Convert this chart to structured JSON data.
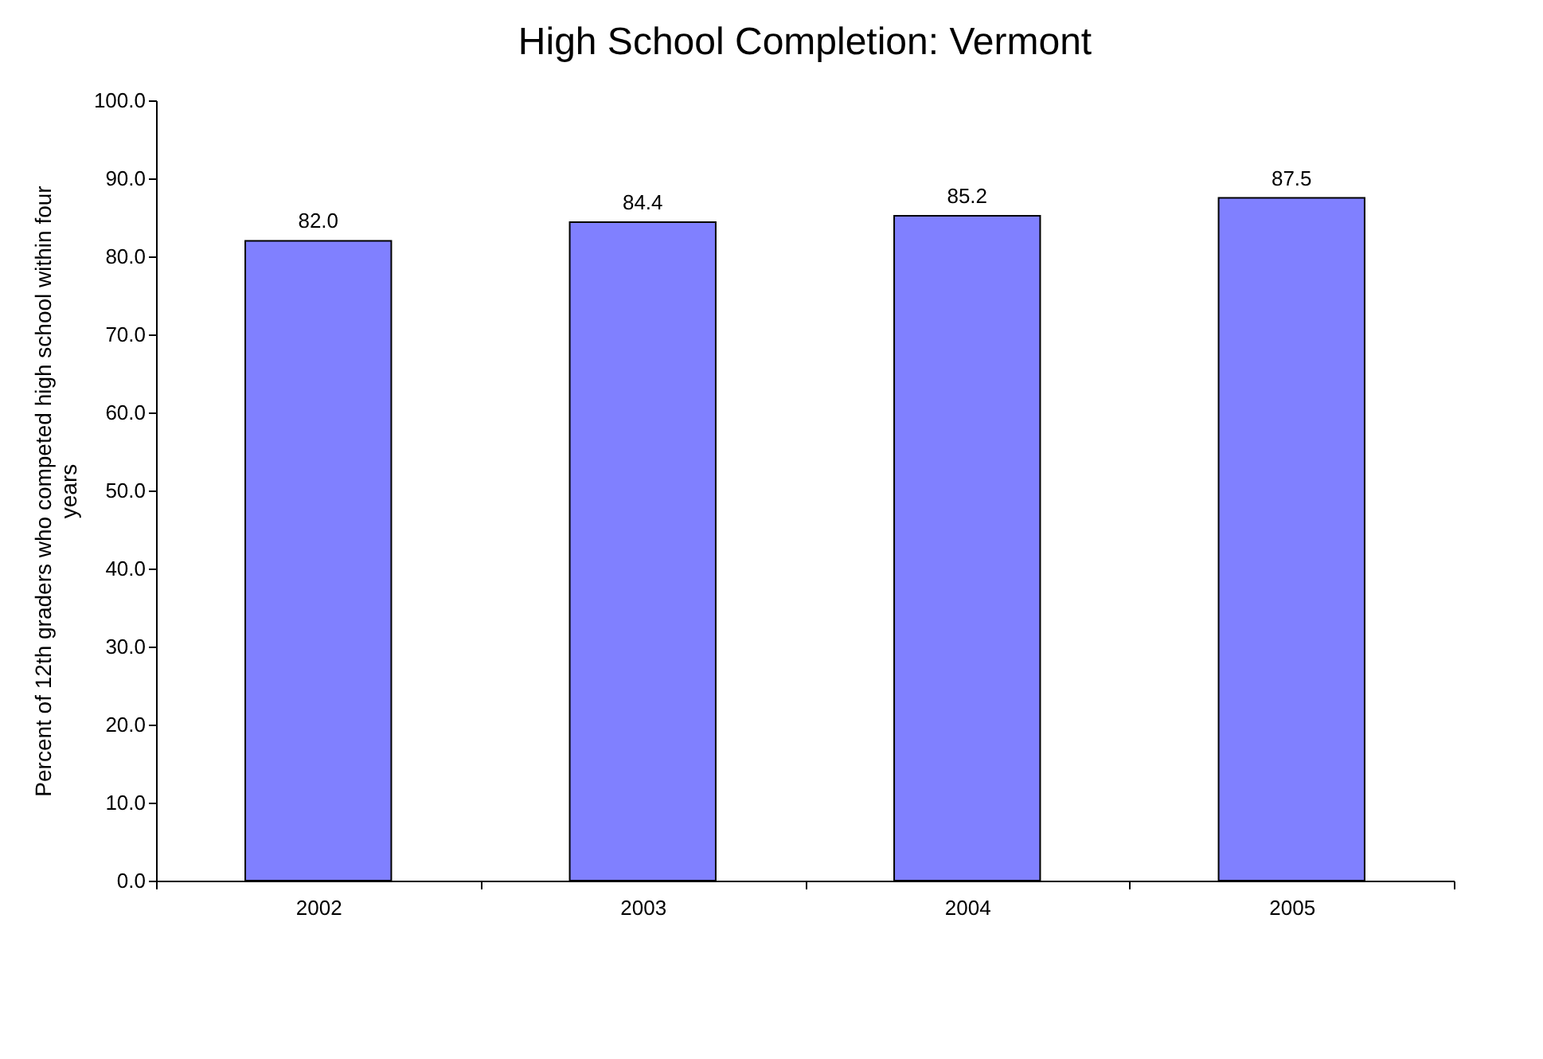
{
  "chart_data": {
    "type": "bar",
    "title": "High School Completion: Vermont",
    "ylabel": "Percent of 12th graders who competed high school  within four years",
    "categories": [
      "2002",
      "2003",
      "2004",
      "2005"
    ],
    "values": [
      82.0,
      84.4,
      85.2,
      87.5
    ],
    "value_labels": [
      "82.0",
      "84.4",
      "85.2",
      "87.5"
    ],
    "color": "#8080ff",
    "ylim": [
      0,
      100
    ],
    "yticks": [
      {
        "value": 0,
        "label": "0.0"
      },
      {
        "value": 10,
        "label": "10.0"
      },
      {
        "value": 20,
        "label": "20.0"
      },
      {
        "value": 30,
        "label": "30.0"
      },
      {
        "value": 40,
        "label": "40.0"
      },
      {
        "value": 50,
        "label": "50.0"
      },
      {
        "value": 60,
        "label": "60.0"
      },
      {
        "value": 70,
        "label": "70.0"
      },
      {
        "value": 80,
        "label": "80.0"
      },
      {
        "value": 90,
        "label": "90.0"
      },
      {
        "value": 100,
        "label": "100.0"
      }
    ],
    "grid": false
  }
}
